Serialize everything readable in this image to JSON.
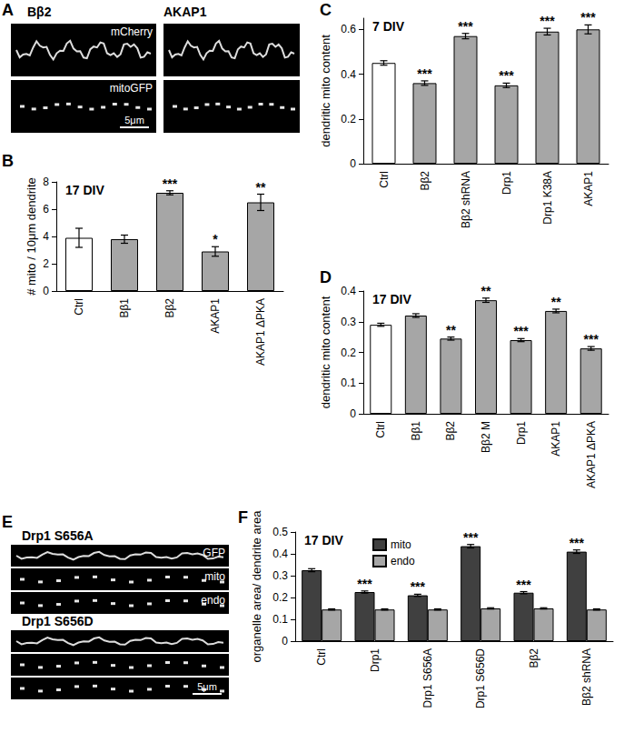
{
  "chart_data": [
    {
      "panel": "B",
      "type": "bar",
      "title": "17 DIV",
      "y_label": "# mito / 10μm dendrite",
      "categories": [
        "Ctrl",
        "Bβ1",
        "Bβ2",
        "AKAP1",
        "AKAP1 ΔPKA"
      ],
      "values": [
        3.9,
        3.8,
        7.2,
        2.9,
        6.5
      ],
      "errors": [
        0.7,
        0.3,
        0.15,
        0.35,
        0.6
      ],
      "significance": [
        null,
        null,
        "***",
        "*",
        "**"
      ],
      "colors": [
        "#ffffff",
        "#a6a6a6",
        "#a6a6a6",
        "#a6a6a6",
        "#a6a6a6"
      ],
      "ylim": [
        0,
        8
      ],
      "yticks": [
        0,
        2,
        4,
        6,
        8
      ]
    },
    {
      "panel": "C",
      "type": "bar",
      "title": "7 DIV",
      "y_label": "dendritic mito content",
      "categories": [
        "Ctrl",
        "Bβ2",
        "Bβ2 shRNA",
        "Drp1",
        "Drp1 K38A",
        "AKAP1"
      ],
      "values": [
        0.45,
        0.36,
        0.57,
        0.35,
        0.59,
        0.6
      ],
      "errors": [
        0.01,
        0.01,
        0.012,
        0.01,
        0.015,
        0.02
      ],
      "significance": [
        null,
        "***",
        "***",
        "***",
        "***",
        "***"
      ],
      "colors": [
        "#ffffff",
        "#a6a6a6",
        "#a6a6a6",
        "#a6a6a6",
        "#a6a6a6",
        "#a6a6a6"
      ],
      "ylim": [
        0,
        0.65
      ],
      "yticks": [
        0,
        0.2,
        0.4,
        0.6
      ]
    },
    {
      "panel": "D",
      "type": "bar",
      "title": "17 DIV",
      "y_label": "dendritic mito content",
      "categories": [
        "Ctrl",
        "Bβ1",
        "Bβ2",
        "Bβ2 M",
        "Drp1",
        "AKAP1",
        "AKAP1 ΔPKA"
      ],
      "values": [
        0.29,
        0.32,
        0.245,
        0.37,
        0.24,
        0.335,
        0.213
      ],
      "errors": [
        0.005,
        0.006,
        0.005,
        0.007,
        0.005,
        0.006,
        0.006
      ],
      "significance": [
        null,
        null,
        "**",
        "**",
        "***",
        "**",
        "***"
      ],
      "colors": [
        "#ffffff",
        "#a6a6a6",
        "#a6a6a6",
        "#a6a6a6",
        "#a6a6a6",
        "#a6a6a6",
        "#a6a6a6"
      ],
      "ylim": [
        0,
        0.4
      ],
      "yticks": [
        0,
        0.1,
        0.2,
        0.3,
        0.4
      ]
    },
    {
      "panel": "F",
      "type": "bar",
      "title": "17 DIV",
      "y_label": "organelle area/ dendrite area",
      "categories": [
        "Ctrl",
        "Drp1",
        "Drp1 S656A",
        "Drp1 S656D",
        "Bβ2",
        "Bβ2 shRNA"
      ],
      "series": [
        {
          "name": "mito",
          "color": "#404040",
          "values": [
            0.325,
            0.225,
            0.21,
            0.435,
            0.222,
            0.41
          ],
          "errors": [
            0.007,
            0.005,
            0.005,
            0.008,
            0.005,
            0.008
          ],
          "significance": [
            null,
            "***",
            "***",
            "***",
            "***",
            "***"
          ]
        },
        {
          "name": "endo",
          "color": "#a6a6a6",
          "values": [
            0.145,
            0.145,
            0.145,
            0.15,
            0.15,
            0.145
          ],
          "errors": [
            0.003,
            0.003,
            0.003,
            0.003,
            0.003,
            0.003
          ]
        }
      ],
      "legend": "top",
      "ylim": [
        0,
        0.5
      ],
      "yticks": [
        0,
        0.1,
        0.2,
        0.3,
        0.4,
        0.5
      ]
    }
  ],
  "image_panels": [
    {
      "panel": "A",
      "columns": [
        {
          "title": "Bβ2",
          "channels": [
            "mCherry",
            "mitoGFP"
          ]
        },
        {
          "title": "AKAP1",
          "channels": []
        }
      ],
      "scale_bar": "5μm"
    },
    {
      "panel": "E",
      "rows": [
        {
          "title": "Drp1 S656A",
          "channels": [
            "GFP",
            "mito",
            "endo"
          ]
        },
        {
          "title": "Drp1 S656D",
          "channels": []
        }
      ],
      "scale_bar": "5μm"
    }
  ]
}
